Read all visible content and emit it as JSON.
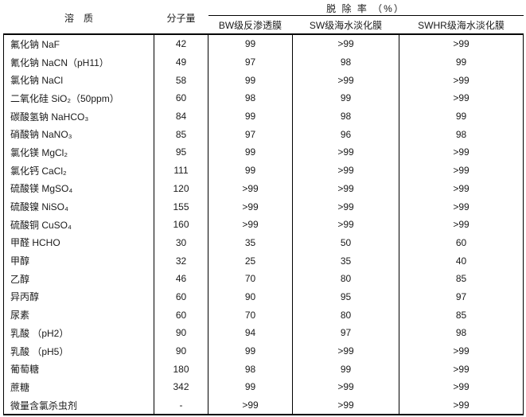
{
  "table": {
    "header": {
      "solute": "溶　质",
      "molecular_weight": "分子量",
      "rejection_rate_group": "脱 除 率 （%）",
      "membranes": [
        "BW级反渗透膜",
        "SW级海水淡化膜",
        "SWHR级海水淡化膜"
      ]
    },
    "rows": [
      {
        "solute": "氟化钠 NaF",
        "mw": "42",
        "bw": "99",
        "sw": ">99",
        "swhr": ">99"
      },
      {
        "solute": "氰化钠 NaCN（pH11）",
        "mw": "49",
        "bw": "97",
        "sw": "98",
        "swhr": "99"
      },
      {
        "solute": "氯化钠 NaCl",
        "mw": "58",
        "bw": "99",
        "sw": ">99",
        "swhr": ">99"
      },
      {
        "solute": "二氧化硅 SiO₂（50ppm）",
        "mw": "60",
        "bw": "98",
        "sw": "99",
        "swhr": ">99"
      },
      {
        "solute": "碳酸氢钠 NaHCO₃",
        "mw": "84",
        "bw": "99",
        "sw": "98",
        "swhr": "99"
      },
      {
        "solute": "硝酸钠 NaNO₃",
        "mw": "85",
        "bw": "97",
        "sw": "96",
        "swhr": "98"
      },
      {
        "solute": "氯化镁 MgCl₂",
        "mw": "95",
        "bw": "99",
        "sw": ">99",
        "swhr": ">99"
      },
      {
        "solute": "氯化钙 CaCl₂",
        "mw": "111",
        "bw": "99",
        "sw": ">99",
        "swhr": ">99"
      },
      {
        "solute": "硫酸镁 MgSO₄",
        "mw": "120",
        "bw": ">99",
        "sw": ">99",
        "swhr": ">99"
      },
      {
        "solute": "硫酸镍 NiSO₄",
        "mw": "155",
        "bw": ">99",
        "sw": ">99",
        "swhr": ">99"
      },
      {
        "solute": "硫酸铜 CuSO₄",
        "mw": "160",
        "bw": ">99",
        "sw": ">99",
        "swhr": ">99"
      },
      {
        "solute": "甲醛 HCHO",
        "mw": "30",
        "bw": "35",
        "sw": "50",
        "swhr": "60"
      },
      {
        "solute": "甲醇",
        "mw": "32",
        "bw": "25",
        "sw": "35",
        "swhr": "40"
      },
      {
        "solute": "乙醇",
        "mw": "46",
        "bw": "70",
        "sw": "80",
        "swhr": "85"
      },
      {
        "solute": "异丙醇",
        "mw": "60",
        "bw": "90",
        "sw": "95",
        "swhr": "97"
      },
      {
        "solute": "尿素",
        "mw": "60",
        "bw": "70",
        "sw": "80",
        "swhr": "85"
      },
      {
        "solute": "乳酸 （pH2）",
        "mw": "90",
        "bw": "94",
        "sw": "97",
        "swhr": "98"
      },
      {
        "solute": "乳酸 （pH5）",
        "mw": "90",
        "bw": "99",
        "sw": ">99",
        "swhr": ">99"
      },
      {
        "solute": "葡萄糖",
        "mw": "180",
        "bw": "98",
        "sw": "99",
        "swhr": ">99"
      },
      {
        "solute": "蔗糖",
        "mw": "342",
        "bw": "99",
        "sw": ">99",
        "swhr": ">99"
      },
      {
        "solute": "微量含氯杀虫剂",
        "mw": "-",
        "bw": ">99",
        "sw": ">99",
        "swhr": ">99"
      }
    ]
  },
  "colors": {
    "border": "#000000",
    "text": "#1a1a1a",
    "background": "#ffffff"
  }
}
